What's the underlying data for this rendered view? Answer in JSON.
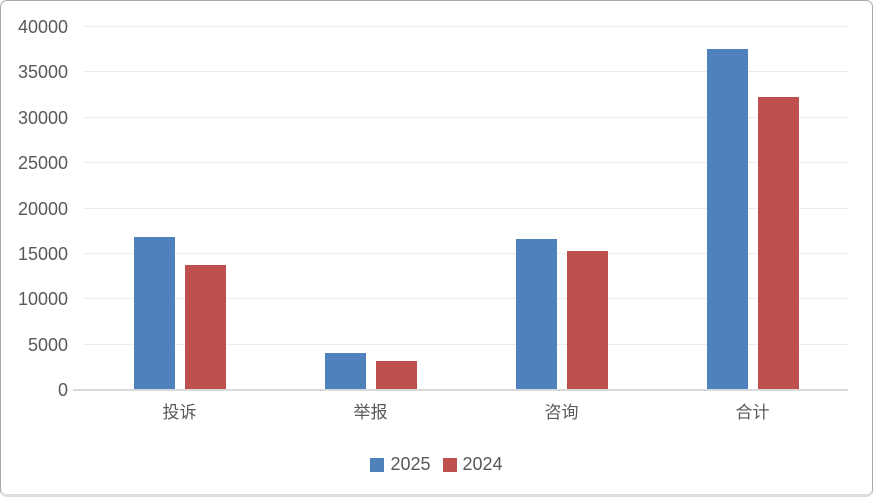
{
  "chart_data": {
    "type": "bar",
    "title": "",
    "categories": [
      "投诉",
      "举报",
      "咨询",
      "合计"
    ],
    "series": [
      {
        "name": "2025",
        "color": "#4F81BD",
        "values": [
          16900,
          4100,
          16600,
          37600
        ]
      },
      {
        "name": "2024",
        "color": "#C0504D",
        "values": [
          13800,
          3200,
          15300,
          32300
        ]
      }
    ],
    "xlabel": "",
    "ylabel": "",
    "ylim": [
      0,
      40000
    ],
    "yticks": [
      0,
      5000,
      10000,
      15000,
      20000,
      25000,
      30000,
      35000,
      40000
    ],
    "grid": "horizontal",
    "legend_position": "bottom"
  },
  "colors": {
    "background": "#FFFFFF",
    "gridline": "#ECECEC",
    "axis_baseline": "#D9D9D9",
    "tick_label": "#595959",
    "frame_border": "#ABABAB",
    "series_2025": "#4F81BD",
    "series_2024": "#C0504D"
  }
}
